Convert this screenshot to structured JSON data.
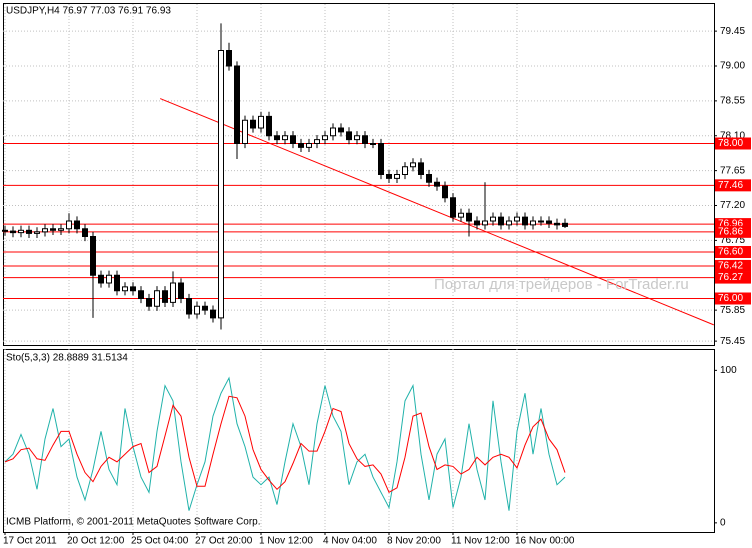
{
  "chart_data": [
    {
      "type": "candlestick",
      "title": "USDJPY,H4  76.97 77.03 76.91 76.93",
      "watermark": "Портал для трейдеров - ForTrader.ru",
      "footer": "ICMB Platform, © 2001-2011 MetaQuotes Software Corp.",
      "categories": [
        "17 Oct 2011",
        null,
        null,
        null,
        null,
        null,
        null,
        null,
        "20 Oct 12:00",
        null,
        null,
        null,
        null,
        null,
        null,
        null,
        "25 Oct 04:00",
        null,
        null,
        null,
        null,
        null,
        null,
        null,
        "27 Oct 20:00",
        null,
        null,
        null,
        null,
        null,
        null,
        null,
        "1 Nov 12:00",
        null,
        null,
        null,
        null,
        null,
        null,
        null,
        "4 Nov 04:00",
        null,
        null,
        null,
        null,
        null,
        null,
        null,
        "8 Nov 20:00",
        null,
        null,
        null,
        null,
        null,
        null,
        null,
        "11 Nov 12:00",
        null,
        null,
        null,
        null,
        null,
        null,
        null,
        "16 Nov 00:00",
        null,
        null,
        null,
        null,
        null,
        null
      ],
      "open": [
        76.88,
        76.87,
        76.85,
        76.88,
        76.84,
        76.86,
        76.9,
        76.88,
        76.9,
        77.0,
        76.9,
        76.8,
        76.3,
        76.2,
        76.3,
        76.1,
        76.15,
        76.1,
        76.0,
        75.9,
        76.1,
        75.95,
        76.2,
        76.0,
        75.8,
        75.9,
        75.85,
        75.75,
        79.2,
        79.0,
        78.0,
        78.3,
        78.2,
        78.35,
        78.1,
        78.05,
        78.1,
        78.0,
        77.95,
        78.0,
        78.05,
        78.1,
        78.2,
        78.15,
        78.05,
        78.1,
        78.0,
        78.0,
        77.6,
        77.55,
        77.6,
        77.7,
        77.75,
        77.6,
        77.5,
        77.45,
        77.3,
        77.05,
        77.1,
        77.0,
        76.95,
        77.0,
        77.05,
        76.95,
        77.0,
        77.05,
        76.95,
        77.0,
        77.0,
        76.97,
        76.97
      ],
      "high": [
        76.94,
        76.93,
        76.94,
        76.94,
        76.92,
        76.96,
        76.96,
        76.96,
        77.1,
        77.06,
        76.96,
        76.86,
        76.36,
        76.36,
        76.36,
        76.21,
        76.21,
        76.16,
        76.06,
        76.16,
        76.16,
        76.35,
        76.26,
        76.06,
        75.96,
        75.96,
        75.91,
        79.55,
        79.3,
        79.06,
        78.36,
        78.36,
        78.41,
        78.41,
        78.16,
        78.16,
        78.16,
        78.06,
        78.06,
        78.11,
        78.16,
        78.26,
        78.26,
        78.21,
        78.16,
        78.16,
        78.06,
        78.06,
        77.66,
        77.66,
        77.76,
        77.81,
        77.81,
        77.66,
        77.56,
        77.51,
        77.36,
        77.16,
        77.16,
        77.06,
        77.5,
        77.11,
        77.11,
        77.06,
        77.11,
        77.11,
        77.06,
        77.06,
        77.06,
        77.03,
        77.03
      ],
      "low": [
        76.81,
        76.79,
        76.79,
        76.78,
        76.78,
        76.8,
        76.82,
        76.82,
        76.84,
        76.84,
        76.74,
        75.75,
        76.14,
        76.14,
        76.04,
        76.04,
        76.04,
        75.94,
        75.84,
        75.84,
        75.89,
        75.89,
        75.94,
        75.74,
        75.74,
        75.79,
        75.69,
        75.6,
        78.94,
        77.8,
        77.94,
        78.14,
        78.14,
        78.04,
        77.99,
        77.99,
        77.94,
        77.89,
        77.89,
        77.94,
        77.99,
        78.04,
        78.09,
        77.99,
        77.99,
        77.94,
        77.94,
        77.54,
        77.49,
        77.49,
        77.54,
        77.64,
        77.54,
        77.44,
        77.39,
        77.24,
        76.99,
        76.99,
        76.8,
        76.89,
        76.89,
        76.94,
        76.89,
        76.89,
        76.94,
        76.89,
        76.89,
        76.94,
        76.91,
        76.89,
        76.91
      ],
      "close": [
        76.87,
        76.85,
        76.88,
        76.84,
        76.86,
        76.9,
        76.88,
        76.9,
        77.0,
        76.9,
        76.8,
        76.3,
        76.2,
        76.3,
        76.1,
        76.15,
        76.1,
        76.0,
        75.9,
        76.1,
        75.95,
        76.2,
        76.0,
        75.8,
        75.9,
        75.85,
        75.75,
        79.2,
        79.0,
        78.0,
        78.3,
        78.2,
        78.35,
        78.1,
        78.05,
        78.1,
        78.0,
        77.95,
        78.0,
        78.05,
        78.1,
        78.2,
        78.15,
        78.05,
        78.1,
        78.0,
        78.0,
        77.6,
        77.55,
        77.6,
        77.7,
        77.75,
        77.6,
        77.5,
        77.45,
        77.3,
        77.05,
        77.1,
        77.0,
        76.95,
        77.0,
        77.05,
        76.95,
        77.0,
        77.05,
        76.95,
        77.0,
        77.0,
        76.97,
        76.95,
        76.93
      ],
      "ylim": [
        75.4,
        79.8
      ],
      "yticks": [
        79.45,
        {
          "value": 79.0,
          "label": "79.00"
        },
        78.55,
        {
          "value": 78.1,
          "label": "78.10"
        },
        77.65,
        {
          "value": 77.2,
          "label": "77.20"
        },
        76.75,
        75.85,
        75.45
      ],
      "levels": [
        {
          "value": 78.0,
          "label": "78.00"
        },
        {
          "value": 77.46,
          "label": "77.46"
        },
        {
          "value": 76.96,
          "label": "76.96"
        },
        {
          "value": 76.86,
          "label": "76.86"
        },
        {
          "value": 76.6,
          "label": "76.60"
        },
        {
          "value": 76.42,
          "label": "76.42"
        },
        {
          "value": 76.27,
          "label": "76.27"
        },
        {
          "value": 76.0,
          "label": "76.00"
        }
      ],
      "level_color": "#ff0000",
      "trendline": {
        "x": [
          19.4,
          88.6
        ],
        "y": [
          78.58,
          75.66
        ],
        "color": "#ff0000"
      },
      "grid": true
    },
    {
      "type": "line",
      "title": "Sto(5,3,3) 28.8889 31.5134",
      "series": [
        {
          "color": "#20b2aa",
          "values": [
            40,
            45,
            58,
            45,
            22,
            55,
            75,
            50,
            55,
            30,
            15,
            35,
            60,
            35,
            25,
            75,
            50,
            30,
            20,
            60,
            90,
            80,
            40,
            8,
            25,
            40,
            70,
            85,
            95,
            65,
            50,
            30,
            25,
            30,
            12,
            40,
            65,
            50,
            25,
            65,
            90,
            70,
            60,
            25,
            40,
            45,
            30,
            20,
            10,
            40,
            80,
            90,
            45,
            15,
            45,
            55,
            10,
            30,
            65,
            35,
            15,
            80,
            40,
            8,
            60,
            85,
            45,
            75,
            45,
            25,
            30
          ]
        },
        {
          "color": "#ff0000",
          "values": [
            40,
            42,
            48,
            49,
            42,
            41,
            51,
            60,
            60,
            45,
            33,
            27,
            37,
            43,
            40,
            45,
            50,
            52,
            33,
            37,
            57,
            77,
            70,
            43,
            24,
            24,
            45,
            65,
            83,
            82,
            70,
            48,
            35,
            28,
            22,
            27,
            39,
            52,
            47,
            47,
            60,
            75,
            73,
            52,
            42,
            37,
            38,
            32,
            20,
            23,
            43,
            70,
            72,
            50,
            35,
            38,
            37,
            32,
            35,
            43,
            38,
            43,
            45,
            43,
            36,
            51,
            63,
            68,
            55,
            48,
            33
          ]
        }
      ],
      "ylim": [
        -6,
        114
      ],
      "yticks": [
        0,
        100
      ]
    }
  ]
}
